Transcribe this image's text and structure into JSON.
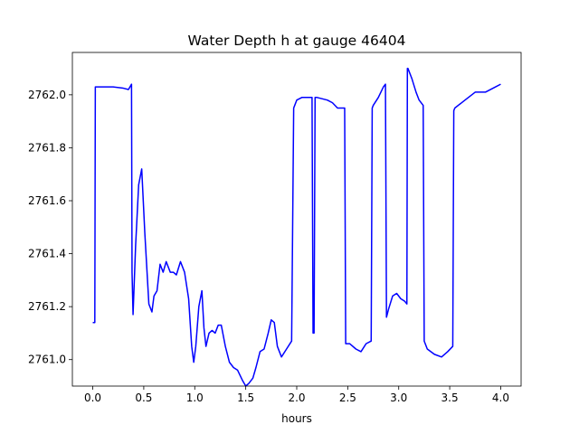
{
  "chart_data": {
    "type": "line",
    "title": "Water Depth h at gauge 46404",
    "xlabel": "hours",
    "ylabel": "",
    "xlim": [
      -0.2,
      4.2
    ],
    "ylim": [
      2760.9,
      2762.16
    ],
    "xticks": [
      "0.0",
      "0.5",
      "1.0",
      "1.5",
      "2.0",
      "2.5",
      "3.0",
      "3.5",
      "4.0"
    ],
    "yticks": [
      "2761.0",
      "2761.2",
      "2761.4",
      "2761.6",
      "2761.8",
      "2762.0"
    ],
    "grid": false,
    "line_color": "#0000ff",
    "series": [
      {
        "x": [
          0.0,
          0.02,
          0.025,
          0.1,
          0.2,
          0.3,
          0.35,
          0.38,
          0.385,
          0.395,
          0.42,
          0.45,
          0.48,
          0.51,
          0.55,
          0.58,
          0.6,
          0.63,
          0.66,
          0.69,
          0.72,
          0.76,
          0.79,
          0.82,
          0.86,
          0.9,
          0.94,
          0.97,
          0.99,
          1.01,
          1.04,
          1.07,
          1.09,
          1.11,
          1.14,
          1.17,
          1.2,
          1.23,
          1.26,
          1.3,
          1.34,
          1.38,
          1.42,
          1.47,
          1.5,
          1.53,
          1.57,
          1.6,
          1.64,
          1.68,
          1.72,
          1.75,
          1.78,
          1.81,
          1.85,
          1.9,
          1.95,
          1.97,
          1.98,
          2.0,
          2.05,
          2.1,
          2.15,
          2.16,
          2.17,
          2.18,
          2.19,
          2.2,
          2.3,
          2.35,
          2.4,
          2.45,
          2.47,
          2.48,
          2.52,
          2.58,
          2.63,
          2.68,
          2.73,
          2.74,
          2.75,
          2.8,
          2.85,
          2.87,
          2.88,
          2.9,
          2.94,
          2.98,
          3.02,
          3.06,
          3.08,
          3.085,
          3.09,
          3.13,
          3.17,
          3.2,
          3.24,
          3.25,
          3.28,
          3.35,
          3.42,
          3.48,
          3.53,
          3.54,
          3.55,
          3.65,
          3.75,
          3.85,
          3.95,
          4.0
        ],
        "y": [
          2761.14,
          2761.14,
          2762.03,
          2762.03,
          2762.03,
          2762.025,
          2762.02,
          2762.04,
          2761.33,
          2761.17,
          2761.43,
          2761.66,
          2761.72,
          2761.48,
          2761.21,
          2761.18,
          2761.24,
          2761.26,
          2761.36,
          2761.33,
          2761.37,
          2761.33,
          2761.33,
          2761.32,
          2761.37,
          2761.33,
          2761.23,
          2761.05,
          2760.99,
          2761.05,
          2761.2,
          2761.26,
          2761.12,
          2761.05,
          2761.1,
          2761.11,
          2761.1,
          2761.13,
          2761.13,
          2761.05,
          2760.99,
          2760.97,
          2760.96,
          2760.92,
          2760.9,
          2760.91,
          2760.93,
          2760.97,
          2761.03,
          2761.04,
          2761.1,
          2761.15,
          2761.14,
          2761.05,
          2761.01,
          2761.04,
          2761.07,
          2761.95,
          2761.96,
          2761.98,
          2761.99,
          2761.99,
          2761.99,
          2761.1,
          2761.1,
          2761.99,
          2761.99,
          2761.99,
          2761.98,
          2761.97,
          2761.95,
          2761.95,
          2761.95,
          2761.06,
          2761.06,
          2761.04,
          2761.03,
          2761.06,
          2761.07,
          2761.95,
          2761.96,
          2761.99,
          2762.03,
          2762.04,
          2761.16,
          2761.19,
          2761.24,
          2761.25,
          2761.23,
          2761.22,
          2761.21,
          2762.1,
          2762.1,
          2762.06,
          2762.01,
          2761.98,
          2761.96,
          2761.07,
          2761.04,
          2761.02,
          2761.01,
          2761.03,
          2761.05,
          2761.94,
          2761.95,
          2761.98,
          2762.01,
          2762.01,
          2762.03,
          2762.04
        ]
      }
    ]
  }
}
